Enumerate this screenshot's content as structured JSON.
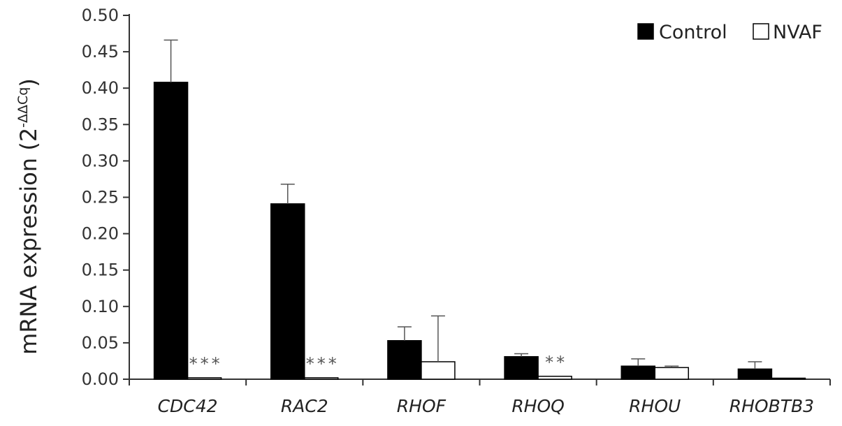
{
  "chart_data": {
    "type": "bar",
    "title": "",
    "ylabel_main": "mRNA expression (2",
    "ylabel_sup": "-ΔΔCq",
    "ylabel_close": ")",
    "xlabel": "",
    "ylim": [
      0,
      0.5
    ],
    "y_ticks": [
      "0.00",
      "0.05",
      "0.10",
      "0.15",
      "0.20",
      "0.25",
      "0.30",
      "0.35",
      "0.40",
      "0.45",
      "0.50"
    ],
    "y_tick_values": [
      0,
      0.05,
      0.1,
      0.15,
      0.2,
      0.25,
      0.3,
      0.35,
      0.4,
      0.45,
      0.5
    ],
    "categories": [
      "CDC42",
      "RAC2",
      "RHOF",
      "RHOQ",
      "RHOU",
      "RHOBTB3"
    ],
    "series": [
      {
        "name": "Control",
        "color": "#000000",
        "values": [
          0.408,
          0.241,
          0.053,
          0.031,
          0.018,
          0.014
        ],
        "errors": [
          0.058,
          0.027,
          0.019,
          0.004,
          0.01,
          0.01
        ]
      },
      {
        "name": "NVAF",
        "color": "#ffffff",
        "values": [
          0.002,
          0.002,
          0.024,
          0.004,
          0.016,
          0.001
        ],
        "errors": [
          0.0,
          0.0,
          0.063,
          0.0,
          0.002,
          0.0
        ]
      }
    ],
    "significance": [
      "***",
      "***",
      "",
      "**",
      "",
      ""
    ],
    "legend_position": "top-right",
    "grid": false
  }
}
